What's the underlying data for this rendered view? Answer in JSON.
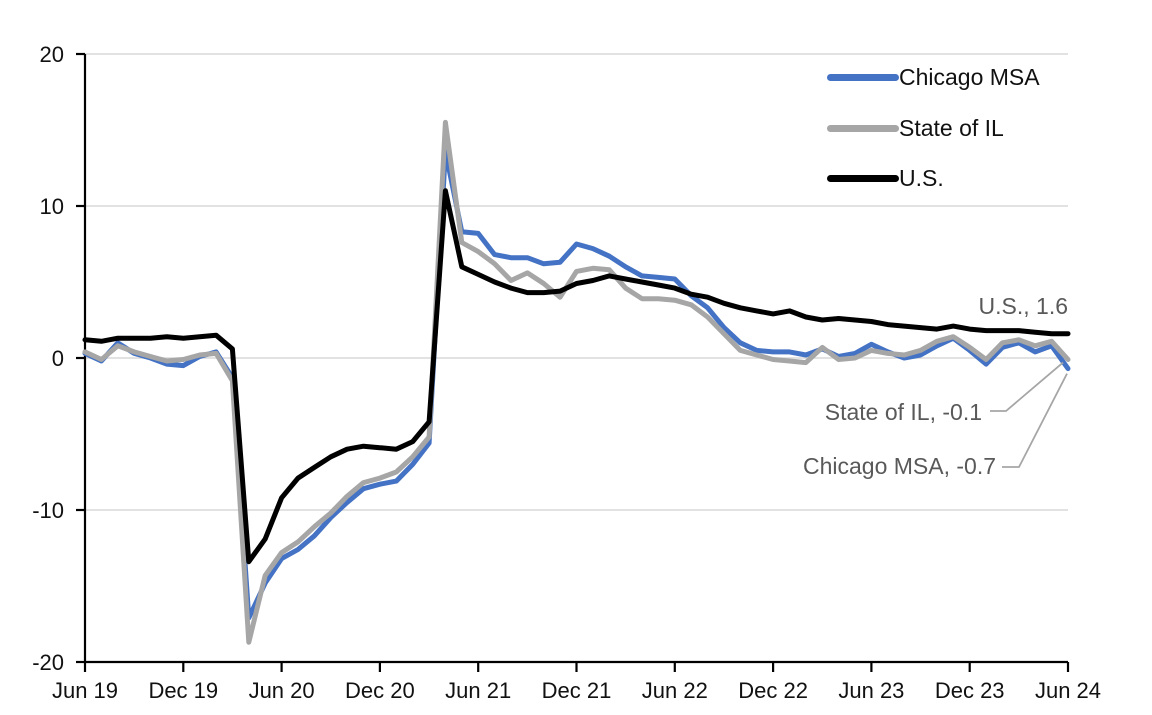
{
  "chart_data": {
    "type": "line",
    "title": "",
    "xlabel": "",
    "ylabel": "",
    "ylim": [
      -20,
      20
    ],
    "yticks": [
      20,
      10,
      0,
      -10,
      -20
    ],
    "grid": true,
    "gridline_color": "#D9D9D9",
    "axis_color": "#000000",
    "legend_position": "top-right",
    "x_tick_labels": [
      "Jun 19",
      "Dec 19",
      "Jun 20",
      "Dec 20",
      "Jun 21",
      "Dec 21",
      "Jun 22",
      "Dec 22",
      "Jun 23",
      "Dec 23",
      "Jun 24"
    ],
    "months": [
      "Jun-19",
      "Jul-19",
      "Aug-19",
      "Sep-19",
      "Oct-19",
      "Nov-19",
      "Dec-19",
      "Jan-20",
      "Feb-20",
      "Mar-20",
      "Apr-20",
      "May-20",
      "Jun-20",
      "Jul-20",
      "Aug-20",
      "Sep-20",
      "Oct-20",
      "Nov-20",
      "Dec-20",
      "Jan-21",
      "Feb-21",
      "Mar-21",
      "Apr-21",
      "May-21",
      "Jun-21",
      "Jul-21",
      "Aug-21",
      "Sep-21",
      "Oct-21",
      "Nov-21",
      "Dec-21",
      "Jan-22",
      "Feb-22",
      "Mar-22",
      "Apr-22",
      "May-22",
      "Jun-22",
      "Jul-22",
      "Aug-22",
      "Sep-22",
      "Oct-22",
      "Nov-22",
      "Dec-22",
      "Jan-23",
      "Feb-23",
      "Mar-23",
      "Apr-23",
      "May-23",
      "Jun-23",
      "Jul-23",
      "Aug-23",
      "Sep-23",
      "Oct-23",
      "Nov-23",
      "Dec-23",
      "Jan-24",
      "Feb-24",
      "Mar-24",
      "Apr-24",
      "May-24",
      "Jun-24"
    ],
    "series": [
      {
        "name": "Chicago MSA",
        "color": "#4472C4",
        "values": [
          0.3,
          -0.2,
          1.0,
          0.3,
          0.0,
          -0.4,
          -0.5,
          0.1,
          0.4,
          -1.3,
          -17.1,
          -14.8,
          -13.2,
          -12.6,
          -11.7,
          -10.5,
          -9.5,
          -8.6,
          -8.3,
          -8.1,
          -7.0,
          -5.6,
          13.6,
          8.3,
          8.2,
          6.8,
          6.6,
          6.6,
          6.2,
          6.3,
          7.5,
          7.2,
          6.7,
          6.0,
          5.4,
          5.3,
          5.2,
          4.1,
          3.3,
          2.0,
          1.0,
          0.5,
          0.4,
          0.4,
          0.2,
          0.6,
          0.1,
          0.3,
          0.9,
          0.4,
          0.0,
          0.2,
          0.8,
          1.3,
          0.5,
          -0.4,
          0.7,
          1.0,
          0.4,
          0.8,
          -0.7
        ]
      },
      {
        "name": "State of IL",
        "color": "#A6A6A6",
        "values": [
          0.4,
          -0.1,
          0.8,
          0.4,
          0.1,
          -0.2,
          -0.1,
          0.2,
          0.3,
          -1.5,
          -18.7,
          -14.3,
          -12.8,
          -12.1,
          -11.1,
          -10.2,
          -9.1,
          -8.2,
          -7.9,
          -7.5,
          -6.5,
          -5.2,
          15.5,
          7.6,
          7.0,
          6.2,
          5.1,
          5.6,
          4.9,
          4.0,
          5.7,
          5.9,
          5.8,
          4.6,
          3.9,
          3.9,
          3.8,
          3.5,
          2.7,
          1.6,
          0.5,
          0.2,
          -0.1,
          -0.2,
          -0.3,
          0.7,
          -0.1,
          0.0,
          0.5,
          0.3,
          0.2,
          0.5,
          1.1,
          1.4,
          0.7,
          -0.1,
          1.0,
          1.2,
          0.8,
          1.1,
          -0.1
        ]
      },
      {
        "name": "U.S.",
        "color": "#000000",
        "values": [
          1.2,
          1.1,
          1.3,
          1.3,
          1.3,
          1.4,
          1.3,
          1.4,
          1.5,
          0.6,
          -13.4,
          -11.9,
          -9.2,
          -7.9,
          -7.2,
          -6.5,
          -6.0,
          -5.8,
          -5.9,
          -6.0,
          -5.5,
          -4.2,
          11.0,
          6.0,
          5.5,
          5.0,
          4.6,
          4.3,
          4.3,
          4.4,
          4.9,
          5.1,
          5.4,
          5.2,
          5.0,
          4.8,
          4.6,
          4.2,
          4.0,
          3.6,
          3.3,
          3.1,
          2.9,
          3.1,
          2.7,
          2.5,
          2.6,
          2.5,
          2.4,
          2.2,
          2.1,
          2.0,
          1.9,
          2.1,
          1.9,
          1.8,
          1.8,
          1.8,
          1.7,
          1.6,
          1.6
        ]
      }
    ],
    "end_labels": {
      "us": "U.S., 1.6",
      "il": "State of IL, -0.1",
      "chicago": "Chicago MSA, -0.7"
    }
  },
  "legend": {
    "items": [
      {
        "label": "Chicago MSA",
        "color": "#4472C4"
      },
      {
        "label": "State of IL",
        "color": "#A6A6A6"
      },
      {
        "label": "U.S.",
        "color": "#000000"
      }
    ]
  },
  "annotations": {
    "us": "U.S., 1.6",
    "il": "State of IL, -0.1",
    "chicago": "Chicago MSA, -0.7",
    "leader_color": "#A6A6A6"
  }
}
